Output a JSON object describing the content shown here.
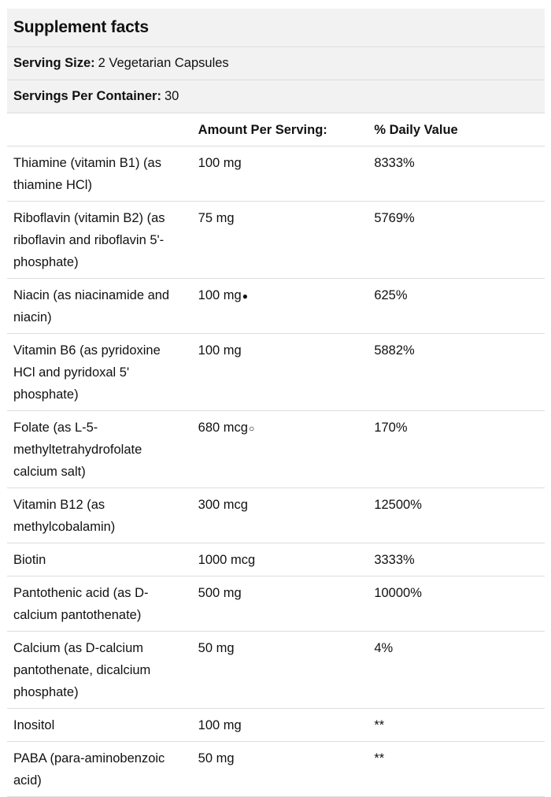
{
  "title": "Supplement facts",
  "serving_size": {
    "label": "Serving Size:",
    "value": "2 Vegetarian Capsules"
  },
  "servings_per_container": {
    "label": "Servings Per Container:",
    "value": "30"
  },
  "columns": {
    "amount": "Amount Per Serving:",
    "daily_value": "% Daily Value"
  },
  "rows": [
    {
      "name": "Thiamine (vitamin B1) (as thiamine HCl)",
      "amount": "100 mg",
      "mark": "",
      "dv": "8333%"
    },
    {
      "name": "Riboflavin (vitamin B2) (as riboflavin and riboflavin 5'-phosphate)",
      "amount": "75 mg",
      "mark": "",
      "dv": "5769%"
    },
    {
      "name": "Niacin (as niacinamide and niacin)",
      "amount": "100 mg",
      "mark": "●",
      "dv": "625%"
    },
    {
      "name": "Vitamin B6 (as pyridoxine HCl and pyridoxal 5' phosphate)",
      "amount": "100 mg",
      "mark": "",
      "dv": "5882%"
    },
    {
      "name": "Folate (as L-5-methyltetrahydrofolate calcium salt)",
      "amount": "680 mcg",
      "mark": "○",
      "dv": "170%"
    },
    {
      "name": "Vitamin B12 (as methylcobalamin)",
      "amount": "300 mcg",
      "mark": "",
      "dv": "12500%"
    },
    {
      "name": "Biotin",
      "amount": "1000 mcg",
      "mark": "",
      "dv": "3333%"
    },
    {
      "name": "Pantothenic acid (as D-calcium pantothenate)",
      "amount": "500 mg",
      "mark": "",
      "dv": "10000%"
    },
    {
      "name": "Calcium (as D-calcium pantothenate, dicalcium phosphate)",
      "amount": "50 mg",
      "mark": "",
      "dv": "4%"
    },
    {
      "name": "Inositol",
      "amount": "100 mg",
      "mark": "",
      "dv": "**"
    },
    {
      "name": "PABA (para-aminobenzoic acid)",
      "amount": "50 mg",
      "mark": "",
      "dv": "**"
    }
  ]
}
